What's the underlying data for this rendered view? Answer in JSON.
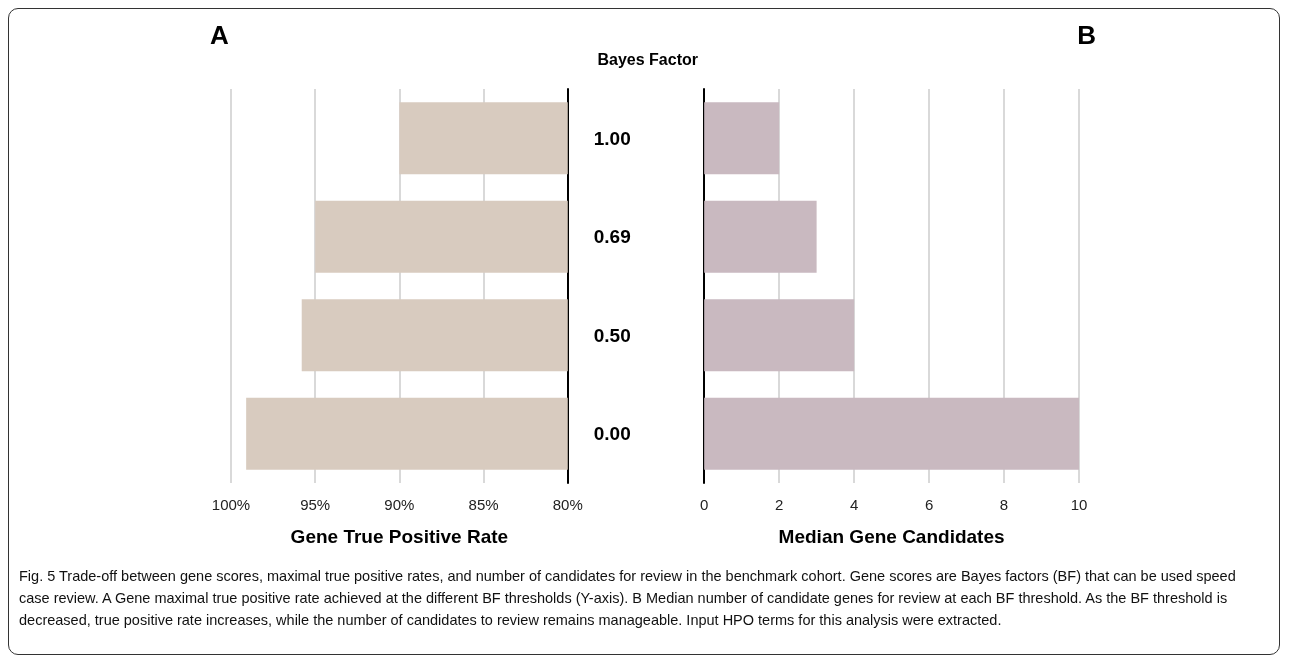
{
  "chart_data": [
    {
      "type": "bar",
      "orientation": "horizontal",
      "title": "A",
      "ylabel": "Bayes Factor",
      "xlabel": "Gene True Positive Rate",
      "categories": [
        "1.00",
        "0.69",
        "0.50",
        "0.00"
      ],
      "values": [
        90.0,
        95.0,
        95.8,
        99.1
      ],
      "color": "#d8cbbf",
      "xlim": [
        100,
        80
      ],
      "xticks": [
        {
          "value": 100,
          "label": "100%"
        },
        {
          "value": 95,
          "label": "95%"
        },
        {
          "value": 90,
          "label": "90%"
        },
        {
          "value": 85,
          "label": "85%"
        },
        {
          "value": 80,
          "label": "80%"
        }
      ],
      "grid": "x",
      "annotations": [
        "Fig. 5 Trade-off between gene scores, maximal true positive rates, and number of candidates for review in the benchmark cohort. Gene scores are Bayes factors (BF) that can be used speed case review. A Gene maximal true positive rate achieved at the different BF thresholds (Y-axis). B Median number of candidate genes for review at each BF threshold. As the BF threshold is decreased, true positive rate increases, while the number of candidates to review remains manageable. Input HPO terms for this analysis were extracted."
      ]
    },
    {
      "type": "bar",
      "orientation": "horizontal",
      "title": "B",
      "xlabel": "Median Gene Candidates",
      "categories": [
        "1.00",
        "0.69",
        "0.50",
        "0.00"
      ],
      "values": [
        2,
        3,
        4,
        10
      ],
      "color": "#c9b9c0",
      "xlim": [
        0,
        10
      ],
      "xticks": [
        0,
        2,
        4,
        6,
        8,
        10
      ],
      "grid": "x",
      "tick_labels": "x"
    }
  ]
}
